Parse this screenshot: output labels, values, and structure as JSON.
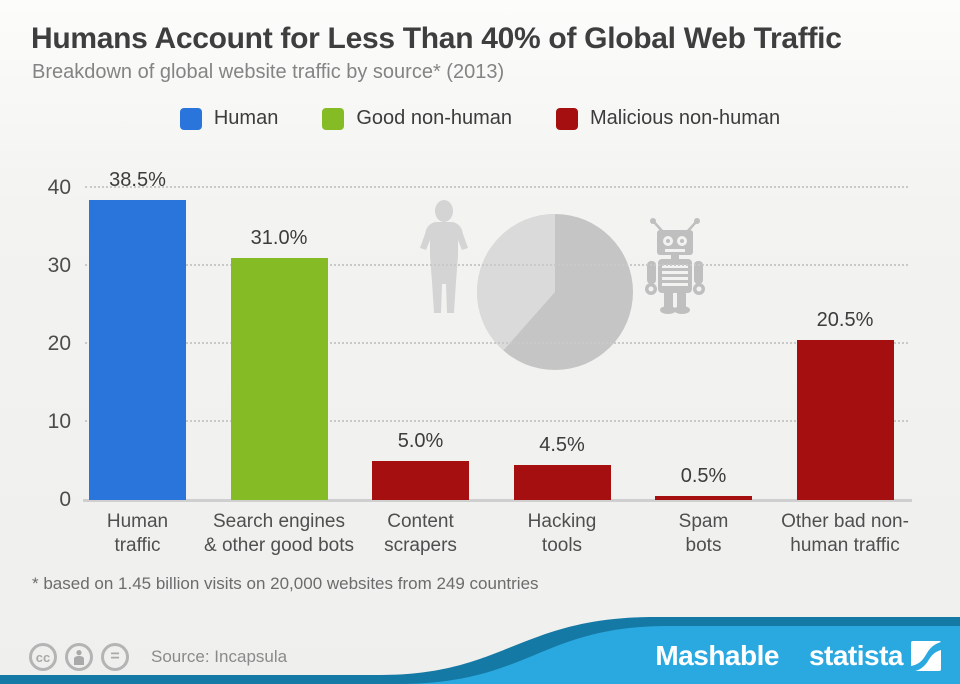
{
  "header": {
    "title": "Humans Account for Less Than 40% of Global Web Traffic",
    "subtitle": "Breakdown of global website traffic by source* (2013)"
  },
  "legend": [
    {
      "label": "Human",
      "color": "#2a75dc"
    },
    {
      "label": "Good non-human",
      "color": "#85bb25"
    },
    {
      "label": "Malicious non-human",
      "color": "#a60f0f"
    }
  ],
  "chart_data": {
    "type": "bar",
    "title": "Humans Account for Less Than 40% of Global Web Traffic",
    "subtitle": "Breakdown of global website traffic by source* (2013)",
    "unit": "%",
    "categories": [
      "Human traffic",
      "Search engines & other good bots",
      "Content scrapers",
      "Hacking tools",
      "Spam bots",
      "Other bad non-human traffic"
    ],
    "values": [
      38.5,
      31.0,
      5.0,
      4.5,
      0.5,
      20.5
    ],
    "bars": [
      {
        "lines": [
          "Human",
          "traffic"
        ],
        "value": 38.5,
        "value_label": "38.5%",
        "series": "Human",
        "color": "#2a75dc"
      },
      {
        "lines": [
          "Search engines",
          "& other good bots"
        ],
        "value": 31.0,
        "value_label": "31.0%",
        "series": "Good non-human",
        "color": "#85bb25"
      },
      {
        "lines": [
          "Content",
          "scrapers"
        ],
        "value": 5.0,
        "value_label": "5.0%",
        "series": "Malicious non-human",
        "color": "#a60f0f"
      },
      {
        "lines": [
          "Hacking",
          "tools"
        ],
        "value": 4.5,
        "value_label": "4.5%",
        "series": "Malicious non-human",
        "color": "#a60f0f"
      },
      {
        "lines": [
          "Spam",
          "bots"
        ],
        "value": 0.5,
        "value_label": "0.5%",
        "series": "Malicious non-human",
        "color": "#a60f0f"
      },
      {
        "lines": [
          "Other bad non-",
          "human traffic"
        ],
        "value": 20.5,
        "value_label": "20.5%",
        "series": "Malicious non-human",
        "color": "#a60f0f"
      }
    ],
    "yticks": [
      0,
      10,
      20,
      30,
      40
    ],
    "ylim": [
      0,
      40
    ],
    "grid": "horizontal-dotted",
    "legend_position": "top",
    "decorations": {
      "pie": {
        "light_share": 38.5,
        "dark_share": 61.5,
        "light_color": "#dadada",
        "dark_color": "#c5c5c5"
      },
      "human_silhouette_color": "#d4d4d4",
      "robot_color": "#bfbfbf"
    }
  },
  "footnote": "* based on 1.45 billion visits on 20,000 websites from 249 countries",
  "footer": {
    "source": "Source: Incapsula",
    "license_icons": [
      "cc",
      "attribution",
      "equal"
    ],
    "equal_glyph": "=",
    "cc_glyph": "cc",
    "brand_left": "Mashable",
    "brand_right": "statista",
    "wave_light": "#29a9e0",
    "wave_dark": "#1579a5"
  }
}
